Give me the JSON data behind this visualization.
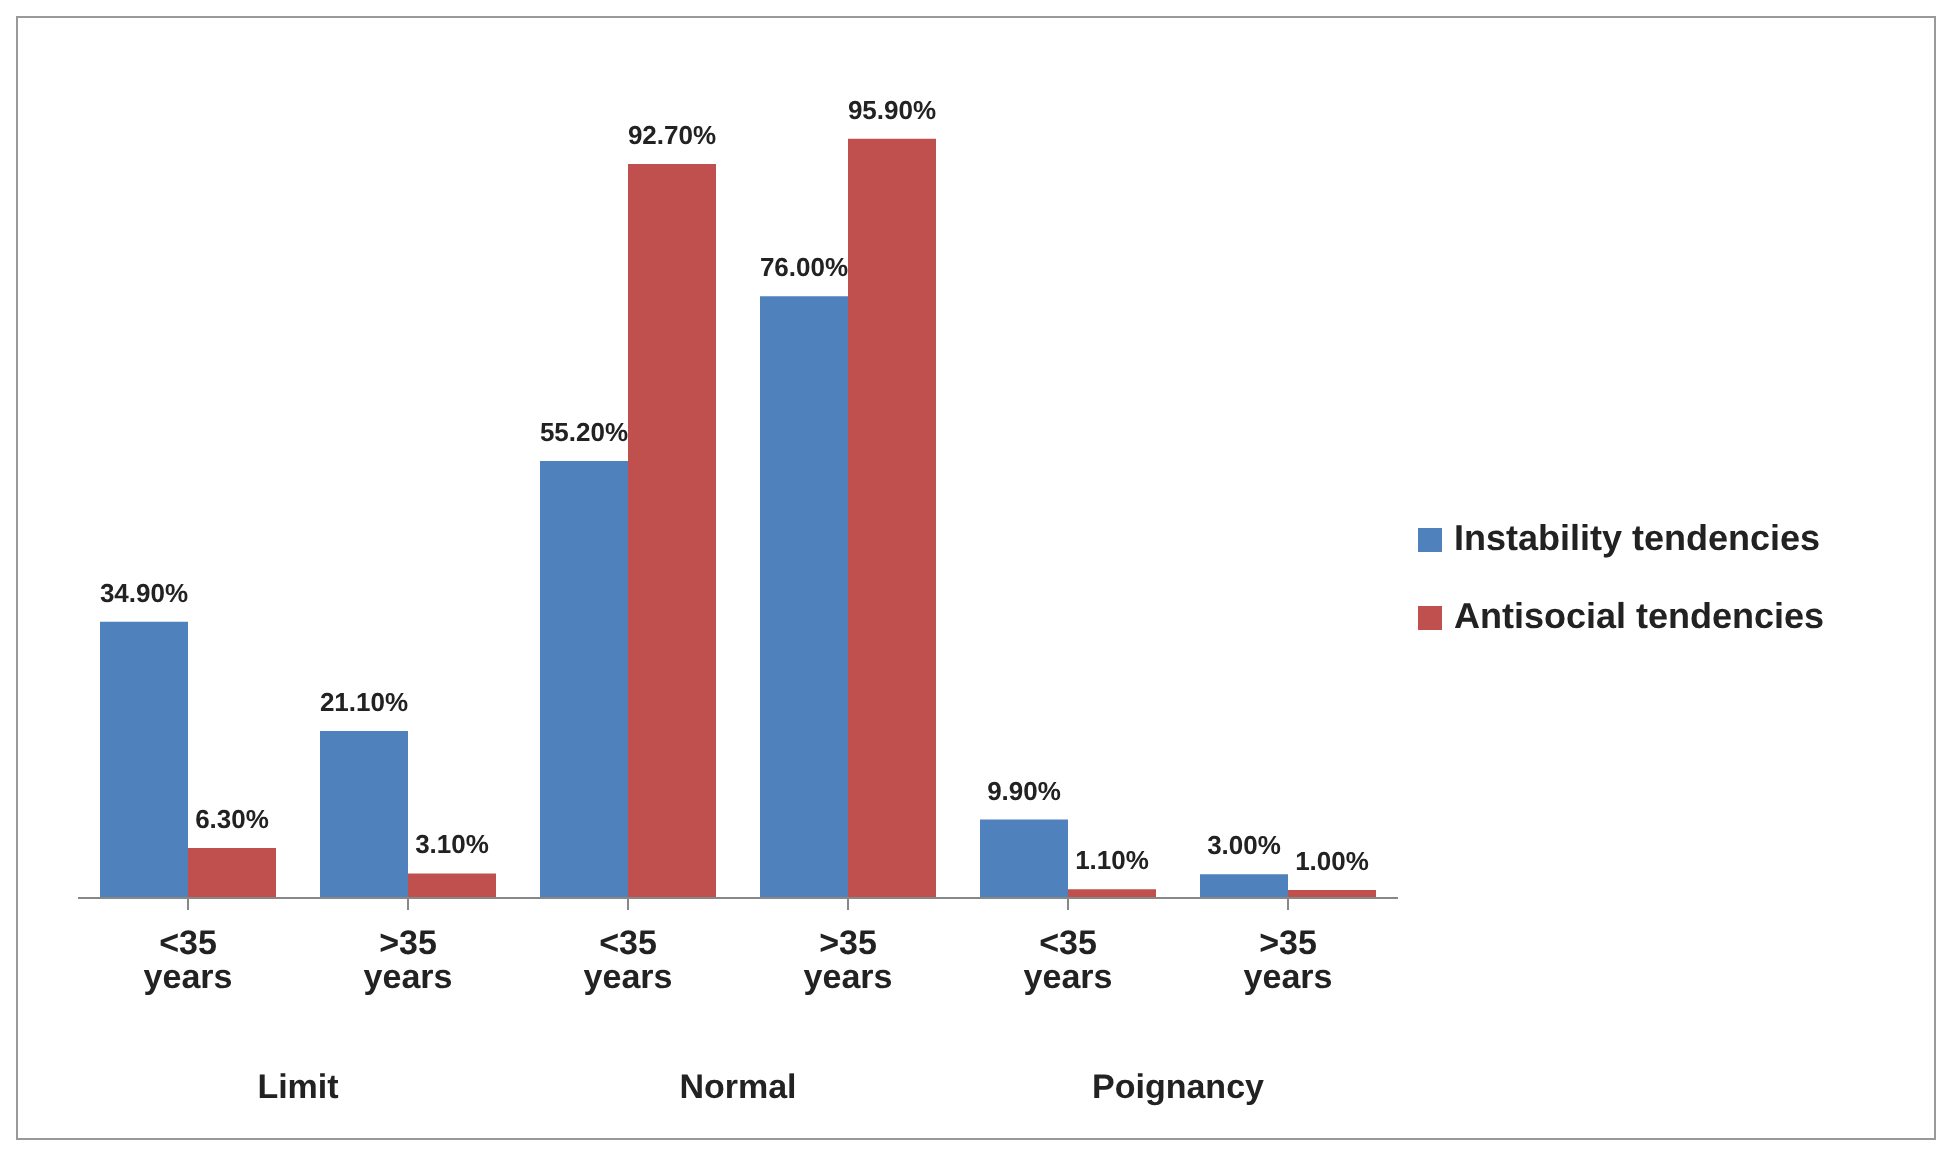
{
  "chart_data": {
    "type": "bar",
    "categories": [
      "<35 years",
      ">35 years",
      "<35 years",
      ">35 years",
      "<35 years",
      ">35 years"
    ],
    "series": [
      {
        "name": "Instability tendencies",
        "color": "#4f81bd",
        "values": [
          34.9,
          21.1,
          55.2,
          76.0,
          9.9,
          3.0
        ],
        "value_labels": [
          "34.90%",
          "21.10%",
          "55.20%",
          "76.00%",
          "9.90%",
          "3.00%"
        ]
      },
      {
        "name": "Antisocial tendencies",
        "color": "#c0504d",
        "values": [
          6.3,
          3.1,
          92.7,
          95.9,
          1.1,
          1.0
        ],
        "value_labels": [
          "6.30%",
          "3.10%",
          "92.70%",
          "95.90%",
          "1.10%",
          "1.00%"
        ]
      }
    ],
    "annotations": [
      "Limit",
      "Normal",
      "Poignancy"
    ],
    "legend": "right"
  }
}
